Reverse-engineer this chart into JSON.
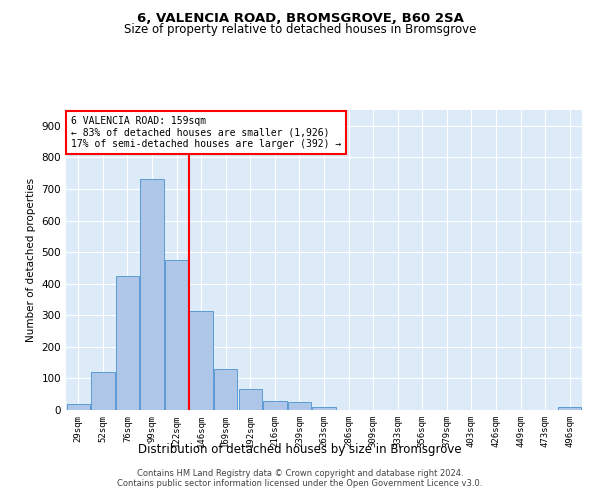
{
  "title1": "6, VALENCIA ROAD, BROMSGROVE, B60 2SA",
  "title2": "Size of property relative to detached houses in Bromsgrove",
  "xlabel": "Distribution of detached houses by size in Bromsgrove",
  "ylabel": "Number of detached properties",
  "bins": [
    "29sqm",
    "52sqm",
    "76sqm",
    "99sqm",
    "122sqm",
    "146sqm",
    "169sqm",
    "192sqm",
    "216sqm",
    "239sqm",
    "263sqm",
    "286sqm",
    "309sqm",
    "333sqm",
    "356sqm",
    "379sqm",
    "403sqm",
    "426sqm",
    "449sqm",
    "473sqm",
    "496sqm"
  ],
  "bar_heights": [
    20,
    120,
    425,
    730,
    475,
    315,
    130,
    65,
    30,
    25,
    10,
    0,
    0,
    0,
    0,
    0,
    0,
    0,
    0,
    0,
    10
  ],
  "bar_color": "#aec6e8",
  "bar_edge_color": "#5b9bd5",
  "background_color": "#ddeaf8",
  "grid_color": "#ffffff",
  "vline_x": 4.5,
  "vline_color": "red",
  "annotation_text": "6 VALENCIA ROAD: 159sqm\n← 83% of detached houses are smaller (1,926)\n17% of semi-detached houses are larger (392) →",
  "annotation_box_color": "white",
  "annotation_box_edge": "red",
  "ylim": [
    0,
    950
  ],
  "yticks": [
    0,
    100,
    200,
    300,
    400,
    500,
    600,
    700,
    800,
    900
  ],
  "footer1": "Contains HM Land Registry data © Crown copyright and database right 2024.",
  "footer2": "Contains public sector information licensed under the Open Government Licence v3.0."
}
